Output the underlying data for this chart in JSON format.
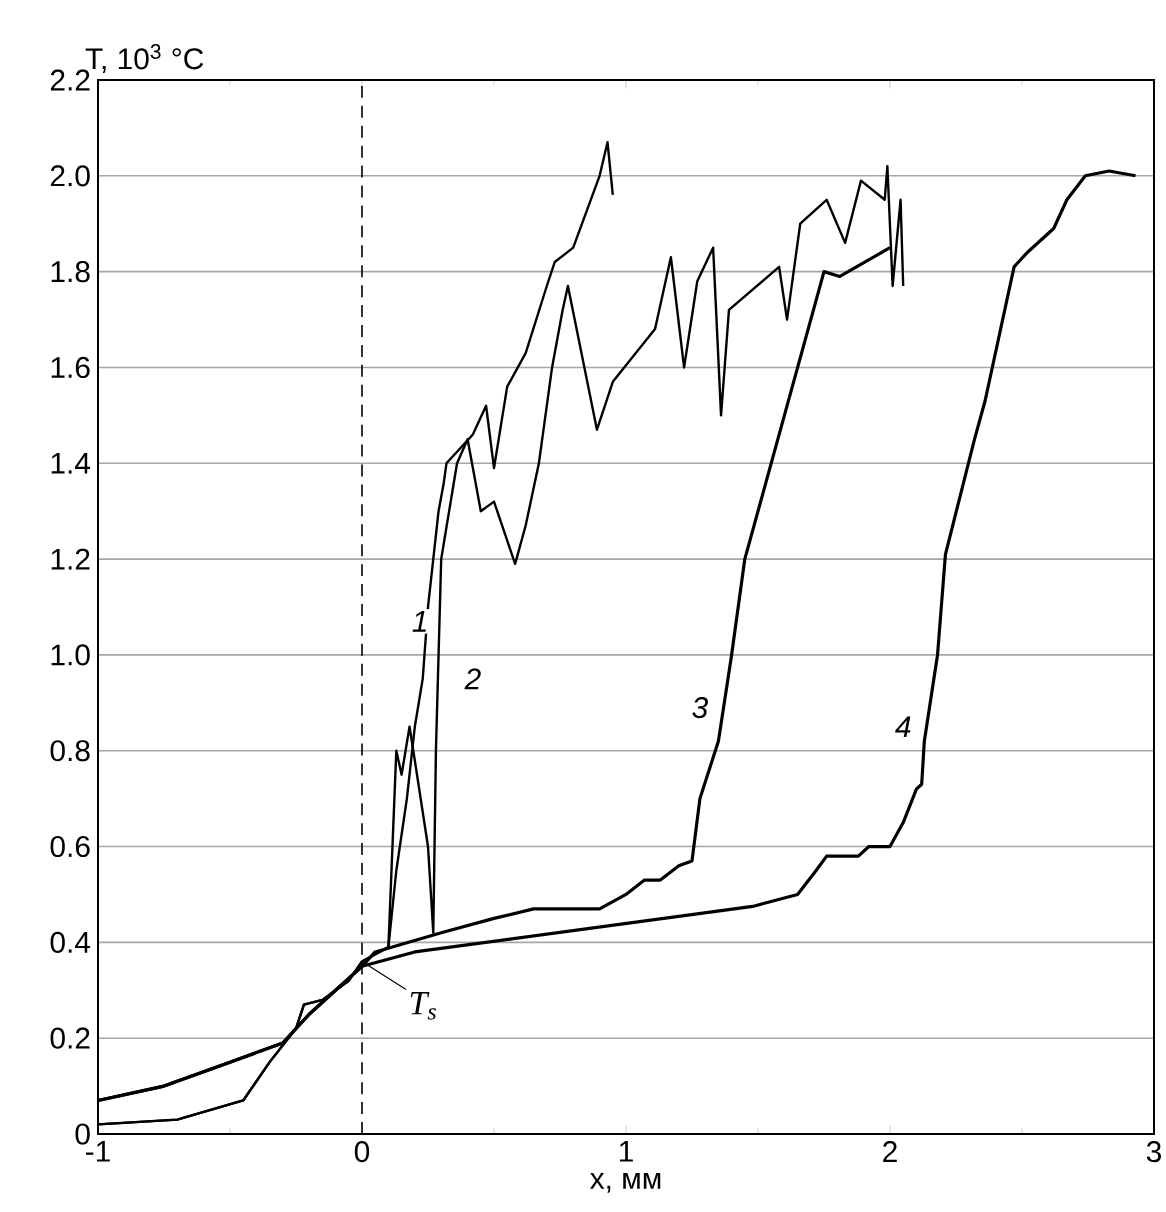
{
  "chart_data": {
    "type": "line",
    "xlabel": "x, мм",
    "ylabel": "T, 10$^{3}$ °C",
    "xlim": [
      -1,
      3
    ],
    "ylim": [
      0,
      2.2
    ],
    "xticks": [
      -1,
      0,
      1,
      2,
      3
    ],
    "yticks": [
      0,
      0.2,
      0.4,
      0.6,
      0.8,
      {
        "value": 1,
        "label": "1.0"
      },
      1.2,
      1.4,
      1.6,
      1.8,
      {
        "value": 2,
        "label": "2.0"
      },
      2.2
    ],
    "grid": "y",
    "line_style": "solid",
    "marker": "none",
    "series": [
      {
        "color": "#000000",
        "x": [
          -1,
          -0.7,
          -0.45,
          -0.35,
          -0.25,
          -0.22,
          -0.15,
          -0.05,
          0,
          0.1,
          0.13,
          0.17,
          0.2,
          0.23,
          0.25,
          0.29,
          0.31,
          0.32,
          0.42,
          0.47,
          0.5,
          0.55,
          0.62,
          0.7,
          0.73,
          0.8,
          0.9,
          0.93,
          0.95
        ],
        "values": [
          0.02,
          0.03,
          0.07,
          0.15,
          0.22,
          0.27,
          0.28,
          0.32,
          0.36,
          0.39,
          0.55,
          0.7,
          0.85,
          0.95,
          1.1,
          1.3,
          1.36,
          1.4,
          1.46,
          1.52,
          1.39,
          1.56,
          1.63,
          1.77,
          1.82,
          1.85,
          2.0,
          2.07,
          1.96
        ]
      },
      {
        "color": "#000000",
        "x": [
          -1,
          -0.7,
          -0.45,
          -0.35,
          -0.25,
          -0.22,
          -0.15,
          -0.05,
          0,
          0.1,
          0.13,
          0.15,
          0.18,
          0.2,
          0.25,
          0.27,
          0.28,
          0.3,
          0.33,
          0.36,
          0.4,
          0.45,
          0.5,
          0.58,
          0.62,
          0.67,
          0.72,
          0.76,
          0.78,
          0.89,
          0.95,
          1.11,
          1.17,
          1.22,
          1.27,
          1.33,
          1.36,
          1.39,
          1.58,
          1.61,
          1.66,
          1.76,
          1.83,
          1.89,
          1.98,
          1.99,
          2.01,
          2.04,
          2.05
        ],
        "values": [
          0.02,
          0.03,
          0.07,
          0.15,
          0.22,
          0.27,
          0.28,
          0.32,
          0.36,
          0.39,
          0.8,
          0.75,
          0.85,
          0.78,
          0.6,
          0.42,
          0.8,
          1.2,
          1.3,
          1.4,
          1.45,
          1.3,
          1.32,
          1.19,
          1.27,
          1.4,
          1.6,
          1.72,
          1.77,
          1.47,
          1.57,
          1.68,
          1.83,
          1.6,
          1.78,
          1.85,
          1.5,
          1.72,
          1.81,
          1.7,
          1.9,
          1.95,
          1.86,
          1.99,
          1.95,
          2.02,
          1.77,
          1.95,
          1.77
        ]
      },
      {
        "color": "#000000",
        "x": [
          -1,
          -0.75,
          -0.5,
          -0.3,
          -0.2,
          -0.1,
          0,
          0.05,
          0.3,
          0.5,
          0.65,
          0.9,
          1.0,
          1.07,
          1.13,
          1.2,
          1.25,
          1.28,
          1.35,
          1.4,
          1.45,
          1.55,
          1.65,
          1.75,
          1.81,
          2.0
        ],
        "values": [
          0.07,
          0.1,
          0.15,
          0.19,
          0.25,
          0.3,
          0.35,
          0.38,
          0.42,
          0.45,
          0.47,
          0.47,
          0.5,
          0.53,
          0.53,
          0.56,
          0.57,
          0.7,
          0.82,
          1.0,
          1.2,
          1.4,
          1.6,
          1.8,
          1.79,
          1.85
        ]
      },
      {
        "color": "#000000",
        "x": [
          -1,
          -0.75,
          -0.5,
          -0.3,
          -0.2,
          -0.1,
          0,
          0.2,
          1.48,
          1.65,
          1.72,
          1.76,
          1.88,
          1.92,
          2.0,
          2.05,
          2.1,
          2.12,
          2.13,
          2.18,
          2.21,
          2.32,
          2.36,
          2.47,
          2.52,
          2.62,
          2.67,
          2.74,
          2.83,
          2.93
        ],
        "values": [
          0.07,
          0.1,
          0.15,
          0.19,
          0.25,
          0.3,
          0.35,
          0.38,
          0.475,
          0.5,
          0.55,
          0.58,
          0.58,
          0.6,
          0.6,
          0.65,
          0.72,
          0.73,
          0.82,
          1.0,
          1.21,
          1.45,
          1.53,
          1.81,
          1.84,
          1.89,
          1.95,
          2.0,
          2.01,
          2.0
        ]
      }
    ],
    "ref_lines": [
      {
        "axis": "x",
        "value": 0,
        "line_style": "dashed"
      }
    ],
    "annotations": [
      {
        "text": "1",
        "x": 0.22,
        "y": 1.07
      },
      {
        "text": "2",
        "x": 0.42,
        "y": 0.95
      },
      {
        "text": "3",
        "x": 1.28,
        "y": 0.89
      },
      {
        "text": "4",
        "x": 2.05,
        "y": 0.85
      },
      {
        "text": "T$_{s}$",
        "x": 0,
        "y": 0.36
      }
    ]
  }
}
